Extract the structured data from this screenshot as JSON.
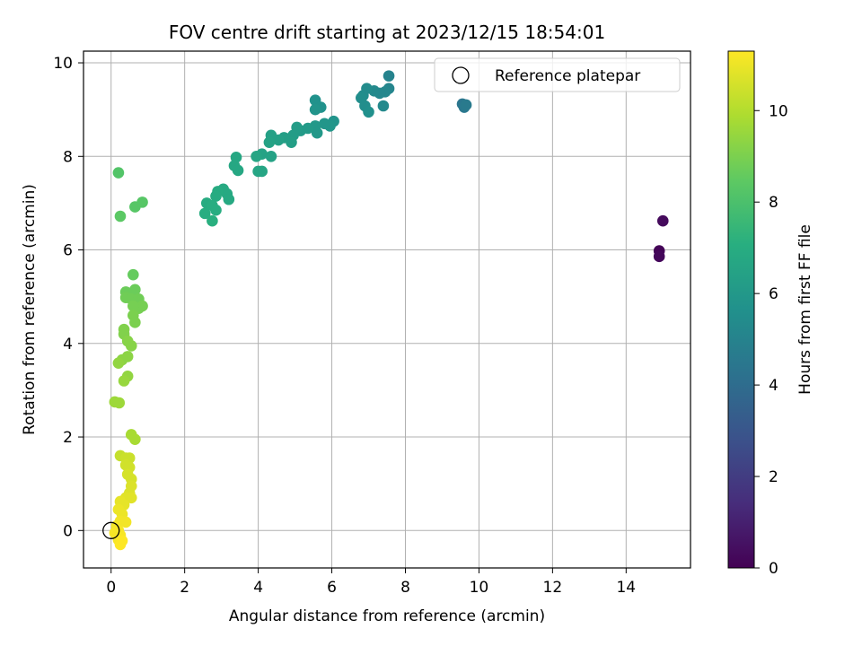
{
  "chart_data": {
    "type": "scatter",
    "title": "FOV centre drift starting at 2023/12/15 18:54:01",
    "xlabel": "Angular distance from reference (arcmin)",
    "ylabel": "Rotation from reference (arcmin)",
    "xlim": [
      -0.75,
      15.75
    ],
    "ylim": [
      -0.8,
      10.25
    ],
    "xticks": [
      0,
      2,
      4,
      6,
      8,
      10,
      12,
      14
    ],
    "yticks": [
      0,
      2,
      4,
      6,
      8,
      10
    ],
    "grid": true,
    "legend": {
      "placement": "top-right",
      "entries": [
        "Reference platepar"
      ]
    },
    "reference_point": {
      "x": 0,
      "y": 0,
      "label": "Reference platepar"
    },
    "colorbar": {
      "label": "Hours from first FF file",
      "colormap": "viridis",
      "range": [
        0,
        11.3
      ],
      "ticks": [
        0,
        2,
        4,
        6,
        8,
        10
      ]
    },
    "points": [
      {
        "x": 14.9,
        "y": 5.98,
        "c": 0.1
      },
      {
        "x": 14.9,
        "y": 5.86,
        "c": 0.2
      },
      {
        "x": 15.0,
        "y": 6.62,
        "c": 0.3
      },
      {
        "x": 9.55,
        "y": 9.12,
        "c": 4.4
      },
      {
        "x": 9.6,
        "y": 9.05,
        "c": 4.5
      },
      {
        "x": 9.65,
        "y": 9.1,
        "c": 4.6
      },
      {
        "x": 7.55,
        "y": 9.72,
        "c": 5.0
      },
      {
        "x": 7.55,
        "y": 9.45,
        "c": 5.1
      },
      {
        "x": 7.45,
        "y": 9.38,
        "c": 5.2
      },
      {
        "x": 7.3,
        "y": 9.35,
        "c": 5.2
      },
      {
        "x": 7.15,
        "y": 9.4,
        "c": 5.3
      },
      {
        "x": 7.4,
        "y": 9.08,
        "c": 5.3
      },
      {
        "x": 6.95,
        "y": 9.45,
        "c": 5.4
      },
      {
        "x": 6.85,
        "y": 9.3,
        "c": 5.4
      },
      {
        "x": 6.8,
        "y": 9.25,
        "c": 5.5
      },
      {
        "x": 6.9,
        "y": 9.08,
        "c": 5.5
      },
      {
        "x": 7.0,
        "y": 8.95,
        "c": 5.6
      },
      {
        "x": 5.55,
        "y": 9.2,
        "c": 5.7
      },
      {
        "x": 5.7,
        "y": 9.05,
        "c": 5.7
      },
      {
        "x": 5.55,
        "y": 9.0,
        "c": 5.8
      },
      {
        "x": 6.05,
        "y": 8.75,
        "c": 5.8
      },
      {
        "x": 5.95,
        "y": 8.65,
        "c": 5.9
      },
      {
        "x": 5.8,
        "y": 8.7,
        "c": 5.9
      },
      {
        "x": 5.55,
        "y": 8.65,
        "c": 6.0
      },
      {
        "x": 5.6,
        "y": 8.5,
        "c": 6.0
      },
      {
        "x": 5.35,
        "y": 8.6,
        "c": 6.1
      },
      {
        "x": 5.15,
        "y": 8.55,
        "c": 6.1
      },
      {
        "x": 5.05,
        "y": 8.62,
        "c": 6.2
      },
      {
        "x": 4.95,
        "y": 8.45,
        "c": 6.2
      },
      {
        "x": 4.9,
        "y": 8.3,
        "c": 6.3
      },
      {
        "x": 4.7,
        "y": 8.4,
        "c": 6.3
      },
      {
        "x": 4.55,
        "y": 8.35,
        "c": 6.4
      },
      {
        "x": 4.35,
        "y": 8.45,
        "c": 6.4
      },
      {
        "x": 4.3,
        "y": 8.3,
        "c": 6.5
      },
      {
        "x": 4.35,
        "y": 8.0,
        "c": 6.5
      },
      {
        "x": 4.1,
        "y": 8.05,
        "c": 6.5
      },
      {
        "x": 3.95,
        "y": 8.0,
        "c": 6.6
      },
      {
        "x": 4.0,
        "y": 7.68,
        "c": 6.6
      },
      {
        "x": 4.1,
        "y": 7.68,
        "c": 6.6
      },
      {
        "x": 3.4,
        "y": 7.98,
        "c": 6.7
      },
      {
        "x": 3.35,
        "y": 7.8,
        "c": 6.7
      },
      {
        "x": 3.45,
        "y": 7.7,
        "c": 6.7
      },
      {
        "x": 3.05,
        "y": 7.3,
        "c": 6.8
      },
      {
        "x": 3.15,
        "y": 7.2,
        "c": 6.8
      },
      {
        "x": 3.2,
        "y": 7.08,
        "c": 6.8
      },
      {
        "x": 2.9,
        "y": 7.25,
        "c": 6.9
      },
      {
        "x": 2.85,
        "y": 7.15,
        "c": 6.9
      },
      {
        "x": 2.6,
        "y": 7.0,
        "c": 6.9
      },
      {
        "x": 2.75,
        "y": 6.95,
        "c": 7.0
      },
      {
        "x": 2.55,
        "y": 6.78,
        "c": 7.0
      },
      {
        "x": 2.85,
        "y": 6.85,
        "c": 7.0
      },
      {
        "x": 2.75,
        "y": 6.62,
        "c": 7.1
      },
      {
        "x": 0.2,
        "y": 7.65,
        "c": 8.2
      },
      {
        "x": 0.65,
        "y": 6.92,
        "c": 8.3
      },
      {
        "x": 0.85,
        "y": 7.02,
        "c": 8.3
      },
      {
        "x": 0.25,
        "y": 6.72,
        "c": 8.4
      },
      {
        "x": 0.6,
        "y": 5.47,
        "c": 8.6
      },
      {
        "x": 0.65,
        "y": 5.15,
        "c": 8.7
      },
      {
        "x": 0.4,
        "y": 5.1,
        "c": 8.7
      },
      {
        "x": 0.4,
        "y": 4.98,
        "c": 8.8
      },
      {
        "x": 0.55,
        "y": 4.95,
        "c": 8.8
      },
      {
        "x": 0.75,
        "y": 4.95,
        "c": 8.8
      },
      {
        "x": 0.85,
        "y": 4.8,
        "c": 8.9
      },
      {
        "x": 0.75,
        "y": 4.75,
        "c": 8.9
      },
      {
        "x": 0.6,
        "y": 4.8,
        "c": 8.9
      },
      {
        "x": 0.6,
        "y": 4.6,
        "c": 9.0
      },
      {
        "x": 0.65,
        "y": 4.45,
        "c": 9.0
      },
      {
        "x": 0.35,
        "y": 4.3,
        "c": 9.1
      },
      {
        "x": 0.35,
        "y": 4.2,
        "c": 9.1
      },
      {
        "x": 0.45,
        "y": 4.05,
        "c": 9.2
      },
      {
        "x": 0.55,
        "y": 3.95,
        "c": 9.2
      },
      {
        "x": 0.45,
        "y": 3.72,
        "c": 9.3
      },
      {
        "x": 0.3,
        "y": 3.65,
        "c": 9.3
      },
      {
        "x": 0.2,
        "y": 3.58,
        "c": 9.4
      },
      {
        "x": 0.45,
        "y": 3.3,
        "c": 9.4
      },
      {
        "x": 0.35,
        "y": 3.2,
        "c": 9.5
      },
      {
        "x": 0.1,
        "y": 2.75,
        "c": 9.6
      },
      {
        "x": 0.22,
        "y": 2.73,
        "c": 9.6
      },
      {
        "x": 0.55,
        "y": 2.05,
        "c": 9.8
      },
      {
        "x": 0.65,
        "y": 1.95,
        "c": 9.8
      },
      {
        "x": 0.25,
        "y": 1.6,
        "c": 10.3
      },
      {
        "x": 0.4,
        "y": 1.55,
        "c": 10.4
      },
      {
        "x": 0.5,
        "y": 1.55,
        "c": 10.4
      },
      {
        "x": 0.4,
        "y": 1.4,
        "c": 10.5
      },
      {
        "x": 0.5,
        "y": 1.35,
        "c": 10.5
      },
      {
        "x": 0.45,
        "y": 1.2,
        "c": 10.6
      },
      {
        "x": 0.55,
        "y": 1.1,
        "c": 10.6
      },
      {
        "x": 0.55,
        "y": 0.95,
        "c": 10.7
      },
      {
        "x": 0.5,
        "y": 0.8,
        "c": 10.7
      },
      {
        "x": 0.55,
        "y": 0.7,
        "c": 10.8
      },
      {
        "x": 0.4,
        "y": 0.7,
        "c": 10.8
      },
      {
        "x": 0.25,
        "y": 0.62,
        "c": 10.9
      },
      {
        "x": 0.35,
        "y": 0.55,
        "c": 10.9
      },
      {
        "x": 0.2,
        "y": 0.45,
        "c": 11.0
      },
      {
        "x": 0.3,
        "y": 0.35,
        "c": 11.0
      },
      {
        "x": 0.25,
        "y": 0.2,
        "c": 11.1
      },
      {
        "x": 0.4,
        "y": 0.18,
        "c": 11.1
      },
      {
        "x": 0.15,
        "y": 0.1,
        "c": 11.1
      },
      {
        "x": 0.2,
        "y": 0.0,
        "c": 11.2
      },
      {
        "x": 0.1,
        "y": -0.05,
        "c": 11.2
      },
      {
        "x": 0.25,
        "y": -0.1,
        "c": 11.2
      },
      {
        "x": 0.2,
        "y": -0.2,
        "c": 11.2
      },
      {
        "x": 0.3,
        "y": -0.22,
        "c": 11.3
      },
      {
        "x": 0.25,
        "y": -0.3,
        "c": 11.3
      }
    ]
  }
}
